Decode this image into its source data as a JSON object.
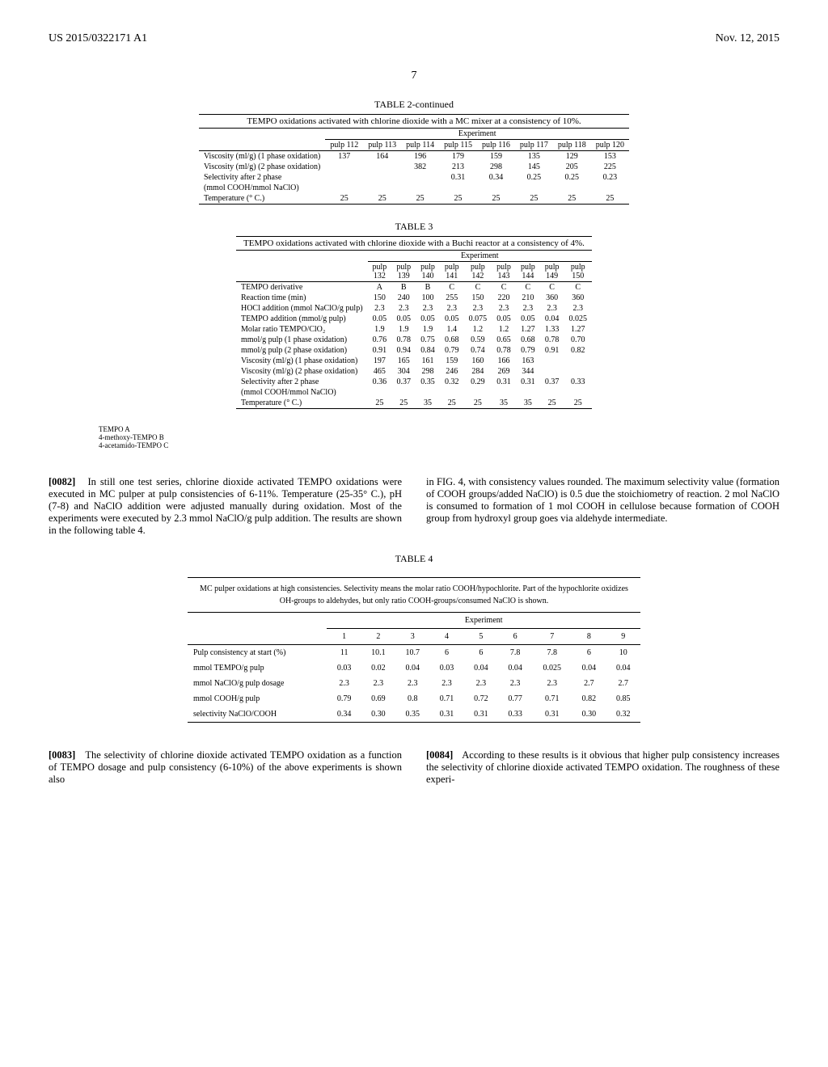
{
  "header": {
    "pub_no": "US 2015/0322171 A1",
    "date": "Nov. 12, 2015",
    "page": "7"
  },
  "table2": {
    "caption": "TABLE 2-continued",
    "title": "TEMPO oxidations activated with chlorine dioxide with a MC mixer at a consistency of 10%.",
    "group_header": "Experiment",
    "columns": [
      "pulp 112",
      "pulp 113",
      "pulp 114",
      "pulp 115",
      "pulp 116",
      "pulp 117",
      "pulp 118",
      "pulp 120"
    ],
    "rows": [
      {
        "label": "Viscosity (ml/g) (1 phase oxidation)",
        "vals": [
          "137",
          "164",
          "196",
          "179",
          "159",
          "135",
          "129",
          "153"
        ]
      },
      {
        "label": "Viscosity (ml/g) (2 phase oxidation)",
        "vals": [
          "",
          "",
          "382",
          "213",
          "298",
          "145",
          "205",
          "225"
        ]
      },
      {
        "label": "Selectivity after 2 phase",
        "vals": [
          "",
          "",
          "",
          "0.31",
          "0.34",
          "0.25",
          "0.25",
          "0.23"
        ]
      },
      {
        "label": "(mmol COOH/mmol NaClO)",
        "vals": [
          "",
          "",
          "",
          "",
          "",
          "",
          "",
          ""
        ]
      },
      {
        "label": "Temperature (° C.)",
        "vals": [
          "25",
          "25",
          "25",
          "25",
          "25",
          "25",
          "25",
          "25"
        ]
      }
    ]
  },
  "table3": {
    "caption": "TABLE 3",
    "title": "TEMPO oxidations activated with chlorine dioxide with a Buchi reactor at a consistency of 4%.",
    "group_header": "Experiment",
    "columns": [
      "pulp 132",
      "pulp 139",
      "pulp 140",
      "pulp 141",
      "pulp 142",
      "pulp 143",
      "pulp 144",
      "pulp 149",
      "pulp 150"
    ],
    "rows": [
      {
        "label": "TEMPO derivative",
        "vals": [
          "A",
          "B",
          "B",
          "C",
          "C",
          "C",
          "C",
          "C",
          "C"
        ]
      },
      {
        "label": "Reaction time (min)",
        "vals": [
          "150",
          "240",
          "100",
          "255",
          "150",
          "220",
          "210",
          "360",
          "360"
        ]
      },
      {
        "label": "HOCl addition (mmol NaClO/g pulp)",
        "vals": [
          "2.3",
          "2.3",
          "2.3",
          "2.3",
          "2.3",
          "2.3",
          "2.3",
          "2.3",
          "2.3"
        ]
      },
      {
        "label": "TEMPO addition (mmol/g pulp)",
        "vals": [
          "0.05",
          "0.05",
          "0.05",
          "0.05",
          "0.075",
          "0.05",
          "0.05",
          "0.04",
          "0.025"
        ]
      },
      {
        "label": "Molar ratio TEMPO/ClO₂",
        "vals": [
          "1.9",
          "1.9",
          "1.9",
          "1.4",
          "1.2",
          "1.2",
          "1.27",
          "1.33",
          "1.27"
        ]
      },
      {
        "label": "mmol/g pulp (1 phase oxidation)",
        "vals": [
          "0.76",
          "0.78",
          "0.75",
          "0.68",
          "0.59",
          "0.65",
          "0.68",
          "0.78",
          "0.70"
        ]
      },
      {
        "label": "mmol/g pulp (2 phase oxidation)",
        "vals": [
          "0.91",
          "0.94",
          "0.84",
          "0.79",
          "0.74",
          "0.78",
          "0.79",
          "0.91",
          "0.82"
        ]
      },
      {
        "label": "Viscosity (ml/g) (1 phase oxidation)",
        "vals": [
          "197",
          "165",
          "161",
          "159",
          "160",
          "166",
          "163",
          "",
          ""
        ]
      },
      {
        "label": "Viscosity (ml/g) (2 phase oxidation)",
        "vals": [
          "465",
          "304",
          "298",
          "246",
          "284",
          "269",
          "344",
          "",
          ""
        ]
      },
      {
        "label": "Selectivity after 2 phase",
        "vals": [
          "0.36",
          "0.37",
          "0.35",
          "0.32",
          "0.29",
          "0.31",
          "0.31",
          "0.37",
          "0.33"
        ]
      },
      {
        "label": "(mmol COOH/mmol NaClO)",
        "vals": [
          "",
          "",
          "",
          "",
          "",
          "",
          "",
          "",
          ""
        ]
      },
      {
        "label": "Temperature (° C.)",
        "vals": [
          "25",
          "25",
          "35",
          "25",
          "25",
          "35",
          "35",
          "25",
          "25"
        ]
      }
    ],
    "footnotes": [
      "TEMPO A",
      "4-methoxy-TEMPO B",
      "4-acetamido-TEMPO C"
    ]
  },
  "para1": {
    "num": "[0082]",
    "text": "In still one test series, chlorine dioxide activated TEMPO oxidations were executed in MC pulper at pulp consistencies of 6-11%. Temperature (25-35° C.), pH (7-8) and NaClO addition were adjusted manually during oxidation. Most of the experiments were executed by 2.3 mmol NaClO/g pulp addition. The results are shown in the following table 4."
  },
  "para1r": {
    "text": "in FIG. 4, with consistency values rounded. The maximum selectivity value (formation of COOH groups/added NaClO) is 0.5 due the stoichiometry of reaction. 2 mol NaClO is consumed to formation of 1 mol COOH in cellulose because formation of COOH group from hydroxyl group goes via aldehyde intermediate."
  },
  "table4": {
    "caption": "TABLE 4",
    "title": "MC pulper oxidations at high consistencies. Selectivity means the molar ratio COOH/hypochlorite. Part of the hypochlorite oxidizes OH-groups to aldehydes, but only ratio COOH-groups/consumed NaClO is shown.",
    "group_header": "Experiment",
    "columns": [
      "1",
      "2",
      "3",
      "4",
      "5",
      "6",
      "7",
      "8",
      "9"
    ],
    "rows": [
      {
        "label": "Pulp consistency at start (%)",
        "vals": [
          "11",
          "10.1",
          "10.7",
          "6",
          "6",
          "7.8",
          "7.8",
          "6",
          "10"
        ]
      },
      {
        "label": "mmol TEMPO/g pulp",
        "vals": [
          "0.03",
          "0.02",
          "0.04",
          "0.03",
          "0.04",
          "0.04",
          "0.025",
          "0.04",
          "0.04"
        ]
      },
      {
        "label": "mmol NaClO/g pulp dosage",
        "vals": [
          "2.3",
          "2.3",
          "2.3",
          "2.3",
          "2.3",
          "2.3",
          "2.3",
          "2.7",
          "2.7"
        ]
      },
      {
        "label": "mmol COOH/g pulp",
        "vals": [
          "0.79",
          "0.69",
          "0.8",
          "0.71",
          "0.72",
          "0.77",
          "0.71",
          "0.82",
          "0.85"
        ]
      },
      {
        "label": "selectivity NaClO/COOH",
        "vals": [
          "0.34",
          "0.30",
          "0.35",
          "0.31",
          "0.31",
          "0.33",
          "0.31",
          "0.30",
          "0.32"
        ]
      }
    ]
  },
  "para2": {
    "num": "[0083]",
    "text": "The selectivity of chlorine dioxide activated TEMPO oxidation as a function of TEMPO dosage and pulp consistency (6-10%) of the above experiments is shown also"
  },
  "para3": {
    "num": "[0084]",
    "text": "According to these results is it obvious that higher pulp consistency increases the selectivity of chlorine dioxide activated TEMPO oxidation. The roughness of these experi-"
  }
}
